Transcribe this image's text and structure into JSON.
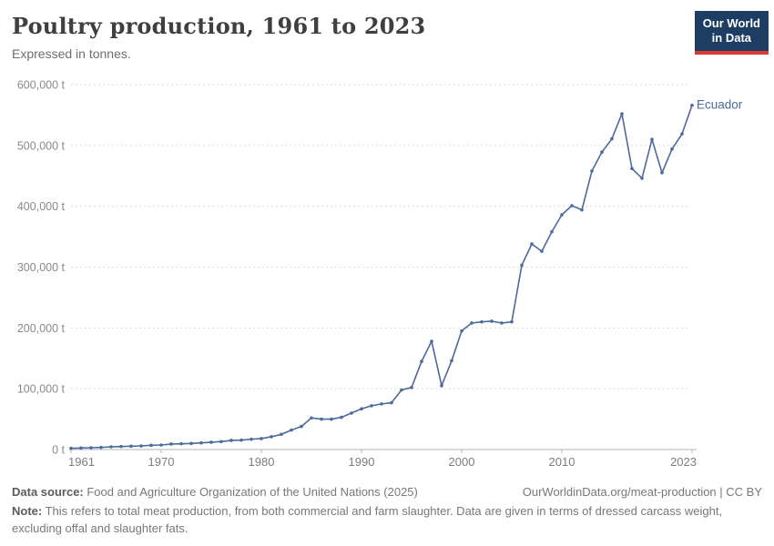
{
  "header": {
    "title": "Poultry production, 1961 to 2023",
    "subtitle": "Expressed in tonnes.",
    "logo": {
      "line1": "Our World",
      "line2": "in Data",
      "bg": "#1d3d63",
      "accent": "#dc3a35"
    }
  },
  "chart_data": {
    "type": "line",
    "title": "Poultry production, 1961 to 2023",
    "entity": "Ecuador",
    "unit": "t",
    "line_color": "#4C6A9C",
    "grid": "horizontal-dashed",
    "legend_position": "end-of-line-label",
    "xlim": [
      1961,
      2023
    ],
    "ylim": [
      0,
      600000
    ],
    "xticks": [
      1961,
      1970,
      1980,
      1990,
      2000,
      2010,
      2023
    ],
    "yticks": [
      0,
      100000,
      200000,
      300000,
      400000,
      500000,
      600000
    ],
    "ytick_labels": [
      "0 t",
      "100,000 t",
      "200,000 t",
      "300,000 t",
      "400,000 t",
      "500,000 t",
      "600,000 t"
    ],
    "x": [
      1961,
      1962,
      1963,
      1964,
      1965,
      1966,
      1967,
      1968,
      1969,
      1970,
      1971,
      1972,
      1973,
      1974,
      1975,
      1976,
      1977,
      1978,
      1979,
      1980,
      1981,
      1982,
      1983,
      1984,
      1985,
      1986,
      1987,
      1988,
      1989,
      1990,
      1991,
      1992,
      1993,
      1994,
      1995,
      1996,
      1997,
      1998,
      1999,
      2000,
      2001,
      2002,
      2003,
      2004,
      2005,
      2006,
      2007,
      2008,
      2009,
      2010,
      2011,
      2012,
      2013,
      2014,
      2015,
      2016,
      2017,
      2018,
      2019,
      2020,
      2021,
      2022,
      2023
    ],
    "series": [
      {
        "name": "Ecuador",
        "values": [
          2000,
          2500,
          3000,
          3500,
          4500,
          5000,
          5500,
          6000,
          7000,
          7500,
          9000,
          9500,
          10000,
          11000,
          12000,
          13000,
          15000,
          15500,
          17000,
          18000,
          21000,
          25000,
          32000,
          38000,
          52000,
          50000,
          50000,
          53000,
          60000,
          67000,
          72000,
          75000,
          77000,
          98000,
          102000,
          145000,
          178000,
          105000,
          146000,
          195000,
          208000,
          210000,
          211000,
          208000,
          210000,
          303000,
          338000,
          326000,
          358000,
          386000,
          401000,
          394000,
          458000,
          489000,
          511000,
          552000,
          462000,
          446000,
          510000,
          455000,
          494000,
          519000,
          566000
        ]
      }
    ]
  },
  "footer": {
    "datasource_label": "Data source:",
    "datasource_text": " Food and Agriculture Organization of the United Nations (2025)",
    "link": "OurWorldinData.org/meat-production | CC BY",
    "note_label": "Note:",
    "note_text": " This refers to total meat production, from both commercial and farm slaughter. Data are given in terms of dressed carcass weight, excluding offal and slaughter fats."
  }
}
